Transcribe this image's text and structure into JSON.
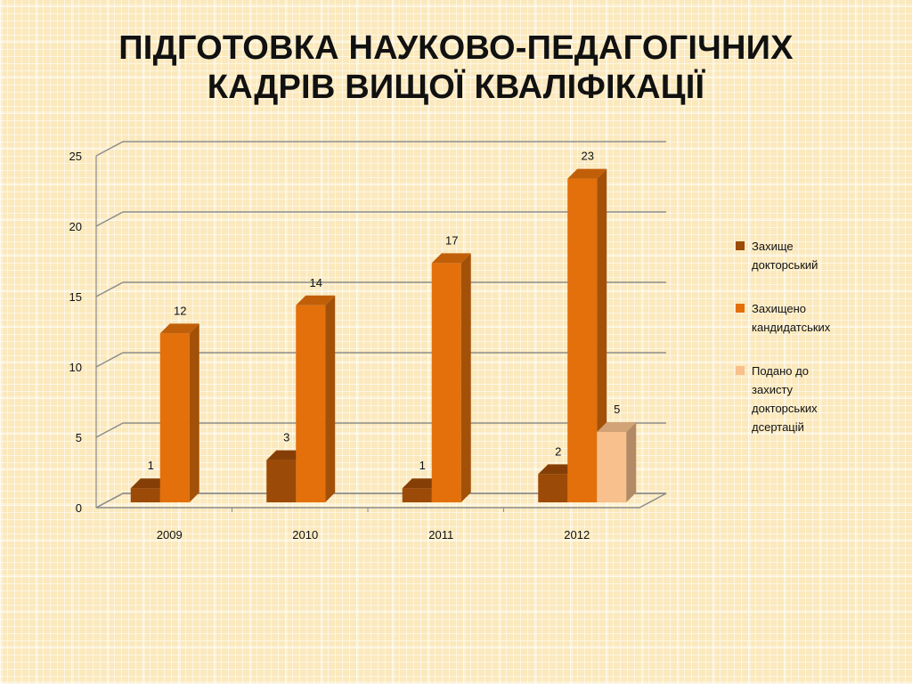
{
  "slide": {
    "title_line1": "ПІДГОТОВКА НАУКОВО-ПЕДАГОГІЧНИХ",
    "title_line2": "КАДРІВ ВИЩОЇ КВАЛІФІКАЦІЇ"
  },
  "chart_data": {
    "type": "bar",
    "style": "3d-clustered-column",
    "categories": [
      "2009",
      "2010",
      "2011",
      "2012"
    ],
    "ylim": [
      0,
      25
    ],
    "yticks": [
      0,
      5,
      10,
      15,
      20,
      25
    ],
    "grid": true,
    "legend_position": "right",
    "series": [
      {
        "name": "Захище\nдокторський",
        "color": "#9c4a07",
        "values": [
          1,
          3,
          1,
          2
        ]
      },
      {
        "name": "Захищено\nкандидатських",
        "color": "#e3700b",
        "values": [
          12,
          14,
          17,
          23
        ]
      },
      {
        "name": "Подано до\nзахисту\nдокторських\nдсертацій",
        "color": "#f7c08c",
        "values": [
          null,
          null,
          null,
          5
        ]
      }
    ]
  }
}
